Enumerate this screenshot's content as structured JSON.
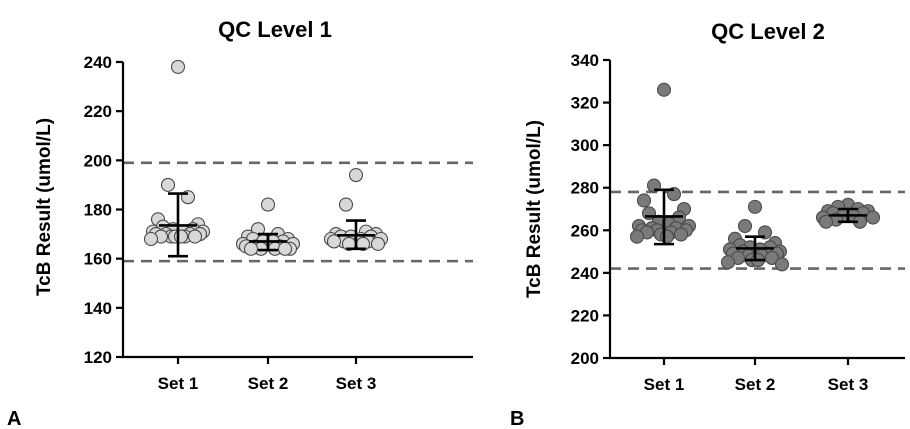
{
  "chart_data": [
    {
      "type": "scatter",
      "panel_letter": "A",
      "title": "QC Level 1",
      "xlabel": "",
      "ylabel": "TcB Result (umol/L)",
      "categories": [
        "Set 1",
        "Set 2",
        "Set 3"
      ],
      "ylim": [
        120,
        240
      ],
      "yticks": [
        120,
        140,
        160,
        180,
        200,
        220,
        240
      ],
      "reference_lines": [
        199,
        159
      ],
      "marker_color": "#d8d8d8",
      "groups": [
        {
          "name": "Set 1",
          "mean": 173.5,
          "sd_low": 161,
          "sd_high": 186.5,
          "values": [
            238,
            190,
            185,
            176,
            174,
            173,
            172,
            172,
            171,
            171,
            171,
            170,
            170,
            170,
            170,
            169,
            169,
            169,
            169,
            169,
            169,
            168
          ]
        },
        {
          "name": "Set 2",
          "mean": 167,
          "sd_low": 163.5,
          "sd_high": 170,
          "values": [
            182,
            172,
            170,
            169,
            168,
            168,
            167,
            167,
            167,
            166,
            166,
            165,
            165,
            165,
            164,
            164,
            164,
            164,
            164
          ]
        },
        {
          "name": "Set 3",
          "mean": 169.5,
          "sd_low": 164,
          "sd_high": 175.5,
          "values": [
            194,
            182,
            171,
            170,
            170,
            169,
            169,
            169,
            168,
            168,
            168,
            167,
            167,
            167,
            166,
            166,
            166
          ]
        }
      ]
    },
    {
      "type": "scatter",
      "panel_letter": "B",
      "title": "QC Level 2",
      "xlabel": "",
      "ylabel": "TcB Result (umol/L)",
      "categories": [
        "Set 1",
        "Set 2",
        "Set 3"
      ],
      "ylim": [
        200,
        340
      ],
      "yticks": [
        200,
        220,
        240,
        260,
        280,
        300,
        320,
        340
      ],
      "reference_lines": [
        278,
        242
      ],
      "marker_color": "#7a7a7a",
      "groups": [
        {
          "name": "Set 1",
          "mean": 266.5,
          "sd_low": 253.5,
          "sd_high": 279,
          "values": [
            326,
            281,
            277,
            274,
            270,
            268,
            266,
            264,
            263,
            262,
            262,
            261,
            261,
            260,
            260,
            260,
            259,
            259,
            258,
            258,
            257,
            257
          ]
        },
        {
          "name": "Set 2",
          "mean": 251.5,
          "sd_low": 246,
          "sd_high": 257,
          "values": [
            271,
            262,
            259,
            256,
            254,
            253,
            252,
            252,
            251,
            251,
            250,
            250,
            249,
            249,
            249,
            248,
            248,
            247,
            247,
            246,
            246,
            245,
            244
          ]
        },
        {
          "name": "Set 3",
          "mean": 267,
          "sd_low": 264,
          "sd_high": 270,
          "values": [
            272,
            271,
            270,
            269,
            269,
            268,
            268,
            267,
            267,
            266,
            266,
            265,
            264,
            264
          ]
        }
      ]
    }
  ]
}
